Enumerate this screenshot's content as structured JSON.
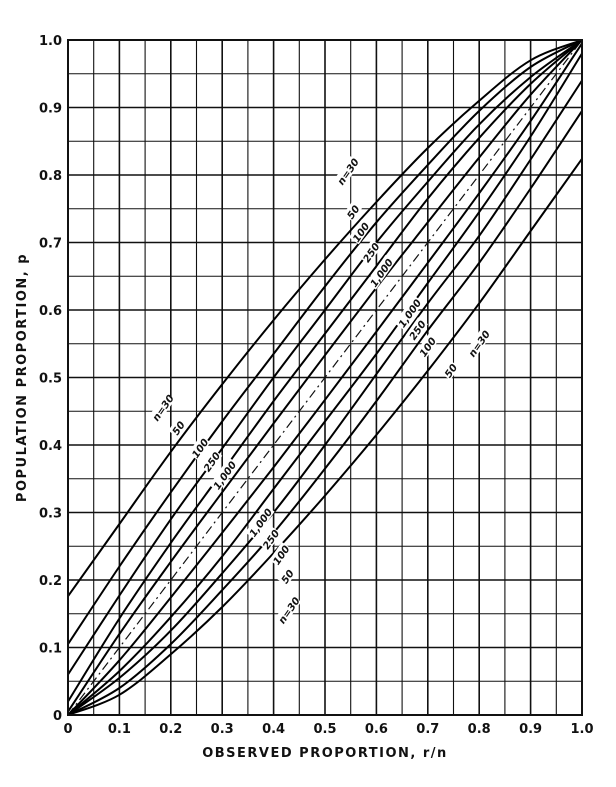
{
  "chart_data": {
    "type": "line",
    "title": "",
    "xlabel": "OBSERVED PROPORTION, r/n",
    "ylabel": "POPULATION PROPORTION, p",
    "xlim": [
      0,
      1
    ],
    "ylim": [
      0,
      1
    ],
    "grid": true,
    "x_ticks": [
      "0",
      "0.1",
      "0.2",
      "0.3",
      "0.4",
      "0.5",
      "0.6",
      "0.7",
      "0.8",
      "0.9",
      "1.0"
    ],
    "y_ticks": [
      "0",
      "0.1",
      "0.2",
      "0.3",
      "0.4",
      "0.5",
      "0.6",
      "0.7",
      "0.8",
      "0.9",
      "1.0"
    ],
    "diagonal": {
      "style": "dash-dot",
      "x": [
        0,
        1
      ],
      "y": [
        0,
        1
      ]
    },
    "series": [
      {
        "name": "n=30",
        "band": "upper",
        "x": [
          0,
          0.1,
          0.2,
          0.3,
          0.4,
          0.5,
          0.6,
          0.7,
          0.8,
          0.9,
          1.0
        ],
        "y": [
          0.176,
          0.283,
          0.39,
          0.49,
          0.585,
          0.675,
          0.76,
          0.84,
          0.91,
          0.97,
          1.0
        ]
      },
      {
        "name": "50",
        "band": "upper",
        "x": [
          0,
          0.1,
          0.2,
          0.3,
          0.4,
          0.5,
          0.6,
          0.7,
          0.8,
          0.9,
          1.0
        ],
        "y": [
          0.105,
          0.22,
          0.33,
          0.435,
          0.535,
          0.635,
          0.73,
          0.815,
          0.895,
          0.96,
          1.0
        ]
      },
      {
        "name": "100",
        "band": "upper",
        "x": [
          0,
          0.1,
          0.2,
          0.3,
          0.4,
          0.5,
          0.6,
          0.7,
          0.8,
          0.9,
          1.0
        ],
        "y": [
          0.06,
          0.177,
          0.29,
          0.395,
          0.5,
          0.6,
          0.7,
          0.79,
          0.875,
          0.945,
          1.0
        ]
      },
      {
        "name": "250",
        "band": "upper",
        "x": [
          0,
          0.1,
          0.2,
          0.3,
          0.4,
          0.5,
          0.6,
          0.7,
          0.8,
          0.9,
          1.0
        ],
        "y": [
          0.02,
          0.143,
          0.255,
          0.36,
          0.465,
          0.565,
          0.665,
          0.765,
          0.855,
          0.935,
          1.0
        ]
      },
      {
        "name": "1,000",
        "band": "upper",
        "x": [
          0,
          0.1,
          0.2,
          0.3,
          0.4,
          0.5,
          0.6,
          0.7,
          0.8,
          0.9,
          1.0
        ],
        "y": [
          0.005,
          0.12,
          0.227,
          0.33,
          0.432,
          0.533,
          0.633,
          0.73,
          0.826,
          0.919,
          1.0
        ]
      },
      {
        "name": "1,000",
        "band": "lower",
        "x": [
          0,
          0.1,
          0.2,
          0.3,
          0.4,
          0.5,
          0.6,
          0.7,
          0.8,
          0.9,
          1.0
        ],
        "y": [
          0.0,
          0.081,
          0.174,
          0.27,
          0.367,
          0.467,
          0.568,
          0.67,
          0.773,
          0.88,
          0.995
        ]
      },
      {
        "name": "250",
        "band": "lower",
        "x": [
          0,
          0.1,
          0.2,
          0.3,
          0.4,
          0.5,
          0.6,
          0.7,
          0.8,
          0.9,
          1.0
        ],
        "y": [
          0.0,
          0.065,
          0.145,
          0.235,
          0.335,
          0.435,
          0.535,
          0.64,
          0.745,
          0.857,
          0.98
        ]
      },
      {
        "name": "100",
        "band": "lower",
        "x": [
          0,
          0.1,
          0.2,
          0.3,
          0.4,
          0.5,
          0.6,
          0.7,
          0.8,
          0.9,
          1.0
        ],
        "y": [
          0.0,
          0.055,
          0.125,
          0.21,
          0.3,
          0.4,
          0.505,
          0.61,
          0.71,
          0.823,
          0.94
        ]
      },
      {
        "name": "50",
        "band": "lower",
        "x": [
          0,
          0.1,
          0.2,
          0.3,
          0.4,
          0.5,
          0.6,
          0.7,
          0.8,
          0.9,
          1.0
        ],
        "y": [
          0.0,
          0.04,
          0.105,
          0.185,
          0.27,
          0.365,
          0.465,
          0.57,
          0.67,
          0.78,
          0.895
        ]
      },
      {
        "name": "n=30",
        "band": "lower",
        "x": [
          0,
          0.1,
          0.2,
          0.3,
          0.4,
          0.5,
          0.6,
          0.7,
          0.8,
          0.9,
          1.0
        ],
        "y": [
          0.0,
          0.03,
          0.09,
          0.16,
          0.24,
          0.325,
          0.415,
          0.51,
          0.61,
          0.717,
          0.824
        ]
      }
    ],
    "curve_labels": [
      {
        "text": "n=30",
        "x": 0.185,
        "y": 0.455,
        "angle": -55
      },
      {
        "text": "50",
        "x": 0.215,
        "y": 0.425,
        "angle": -55
      },
      {
        "text": "100",
        "x": 0.257,
        "y": 0.395,
        "angle": -55
      },
      {
        "text": "250",
        "x": 0.28,
        "y": 0.375,
        "angle": -55
      },
      {
        "text": "1,000",
        "x": 0.305,
        "y": 0.355,
        "angle": -55
      },
      {
        "text": "n=30",
        "x": 0.545,
        "y": 0.805,
        "angle": -55
      },
      {
        "text": "50",
        "x": 0.555,
        "y": 0.745,
        "angle": -55
      },
      {
        "text": "100",
        "x": 0.57,
        "y": 0.715,
        "angle": -55
      },
      {
        "text": "250",
        "x": 0.59,
        "y": 0.685,
        "angle": -55
      },
      {
        "text": "1,000",
        "x": 0.61,
        "y": 0.655,
        "angle": -55
      },
      {
        "text": "1,000",
        "x": 0.375,
        "y": 0.285,
        "angle": -55
      },
      {
        "text": "250",
        "x": 0.395,
        "y": 0.26,
        "angle": -55
      },
      {
        "text": "100",
        "x": 0.415,
        "y": 0.237,
        "angle": -55
      },
      {
        "text": "50",
        "x": 0.427,
        "y": 0.205,
        "angle": -55
      },
      {
        "text": "n=30",
        "x": 0.43,
        "y": 0.155,
        "angle": -55
      },
      {
        "text": "1,000",
        "x": 0.665,
        "y": 0.595,
        "angle": -55
      },
      {
        "text": "250",
        "x": 0.68,
        "y": 0.57,
        "angle": -55
      },
      {
        "text": "100",
        "x": 0.7,
        "y": 0.545,
        "angle": -55
      },
      {
        "text": "50",
        "x": 0.745,
        "y": 0.51,
        "angle": -55
      },
      {
        "text": "n=30",
        "x": 0.8,
        "y": 0.55,
        "angle": -55
      }
    ]
  }
}
